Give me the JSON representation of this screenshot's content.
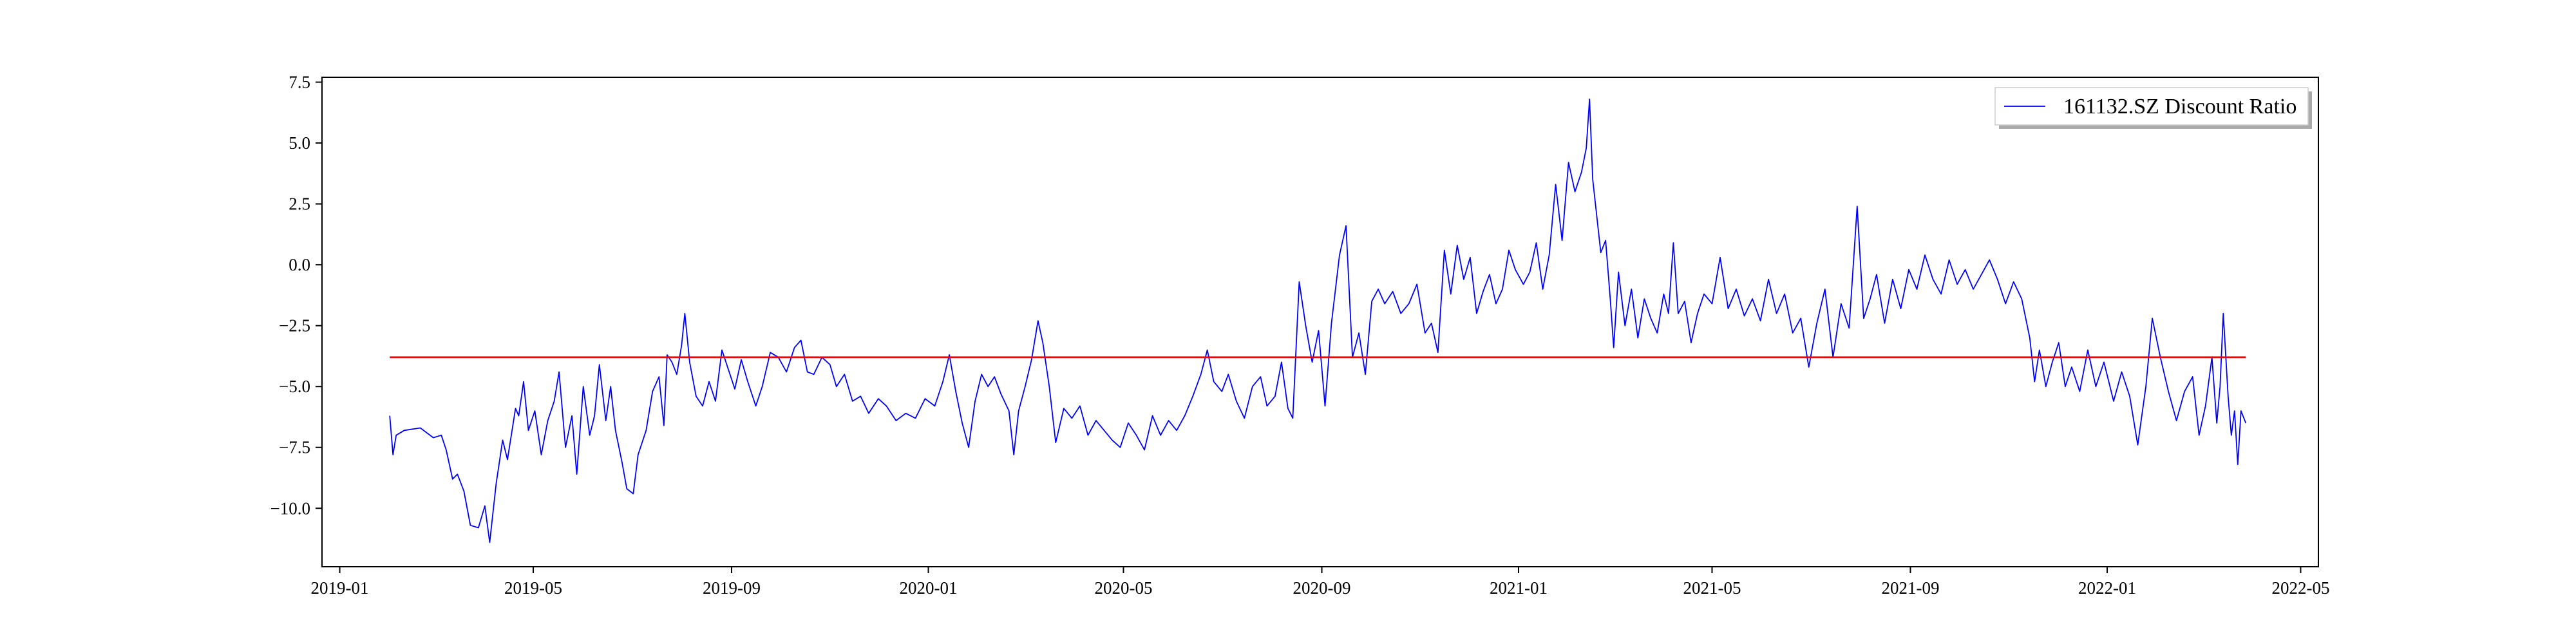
{
  "chart_data": {
    "type": "line",
    "title": "",
    "xlabel": "",
    "ylabel": "",
    "x_tick_labels": [
      "2019-01",
      "2019-05",
      "2019-09",
      "2020-01",
      "2020-05",
      "2020-09",
      "2021-01",
      "2021-05",
      "2021-09",
      "2022-01",
      "2022-05"
    ],
    "y_tick_labels": [
      "7.5",
      "5.0",
      "2.5",
      "0.0",
      "−2.5",
      "−5.0",
      "−7.5",
      "−10.0"
    ],
    "y_ticks": [
      7.5,
      5.0,
      2.5,
      0.0,
      -2.5,
      -5.0,
      -7.5,
      -10.0
    ],
    "xlim": [
      "2018-12-21",
      "2022-05-12"
    ],
    "ylim": [
      -12.4,
      7.7
    ],
    "grid": false,
    "legend_position": "top-right",
    "series": [
      {
        "name": "161132.SZ Discount Ratio",
        "color": "#0000ff",
        "points": [
          [
            "2019-02-01",
            -6.2
          ],
          [
            "2019-02-03",
            -7.8
          ],
          [
            "2019-02-05",
            -7.0
          ],
          [
            "2019-02-10",
            -6.8
          ],
          [
            "2019-02-20",
            -6.7
          ],
          [
            "2019-02-28",
            -7.1
          ],
          [
            "2019-03-05",
            -7.0
          ],
          [
            "2019-03-08",
            -7.6
          ],
          [
            "2019-03-12",
            -8.8
          ],
          [
            "2019-03-15",
            -8.6
          ],
          [
            "2019-03-19",
            -9.3
          ],
          [
            "2019-03-23",
            -10.7
          ],
          [
            "2019-03-28",
            -10.8
          ],
          [
            "2019-04-01",
            -9.9
          ],
          [
            "2019-04-04",
            -11.4
          ],
          [
            "2019-04-08",
            -9.0
          ],
          [
            "2019-04-12",
            -7.2
          ],
          [
            "2019-04-15",
            -8.0
          ],
          [
            "2019-04-20",
            -5.9
          ],
          [
            "2019-04-22",
            -6.2
          ],
          [
            "2019-04-25",
            -4.8
          ],
          [
            "2019-04-28",
            -6.8
          ],
          [
            "2019-05-02",
            -6.0
          ],
          [
            "2019-05-06",
            -7.8
          ],
          [
            "2019-05-10",
            -6.4
          ],
          [
            "2019-05-14",
            -5.6
          ],
          [
            "2019-05-17",
            -4.4
          ],
          [
            "2019-05-21",
            -7.5
          ],
          [
            "2019-05-25",
            -6.2
          ],
          [
            "2019-05-28",
            -8.6
          ],
          [
            "2019-06-01",
            -5.0
          ],
          [
            "2019-06-05",
            -7.0
          ],
          [
            "2019-06-08",
            -6.2
          ],
          [
            "2019-06-11",
            -4.1
          ],
          [
            "2019-06-15",
            -6.4
          ],
          [
            "2019-06-18",
            -5.0
          ],
          [
            "2019-06-21",
            -6.8
          ],
          [
            "2019-06-25",
            -8.1
          ],
          [
            "2019-06-28",
            -9.2
          ],
          [
            "2019-07-02",
            -9.4
          ],
          [
            "2019-07-05",
            -7.8
          ],
          [
            "2019-07-10",
            -6.8
          ],
          [
            "2019-07-14",
            -5.2
          ],
          [
            "2019-07-18",
            -4.6
          ],
          [
            "2019-07-21",
            -6.6
          ],
          [
            "2019-07-23",
            -3.7
          ],
          [
            "2019-07-26",
            -4.0
          ],
          [
            "2019-07-29",
            -4.5
          ],
          [
            "2019-08-01",
            -3.3
          ],
          [
            "2019-08-03",
            -2.0
          ],
          [
            "2019-08-06",
            -4.0
          ],
          [
            "2019-08-10",
            -5.4
          ],
          [
            "2019-08-14",
            -5.8
          ],
          [
            "2019-08-18",
            -4.8
          ],
          [
            "2019-08-22",
            -5.6
          ],
          [
            "2019-08-26",
            -3.5
          ],
          [
            "2019-08-30",
            -4.3
          ],
          [
            "2019-09-03",
            -5.1
          ],
          [
            "2019-09-07",
            -3.9
          ],
          [
            "2019-09-11",
            -4.8
          ],
          [
            "2019-09-16",
            -5.8
          ],
          [
            "2019-09-20",
            -5.0
          ],
          [
            "2019-09-25",
            -3.6
          ],
          [
            "2019-09-30",
            -3.8
          ],
          [
            "2019-10-05",
            -4.4
          ],
          [
            "2019-10-10",
            -3.4
          ],
          [
            "2019-10-14",
            -3.1
          ],
          [
            "2019-10-18",
            -4.4
          ],
          [
            "2019-10-22",
            -4.5
          ],
          [
            "2019-10-27",
            -3.8
          ],
          [
            "2019-11-01",
            -4.1
          ],
          [
            "2019-11-05",
            -5.0
          ],
          [
            "2019-11-10",
            -4.5
          ],
          [
            "2019-11-15",
            -5.6
          ],
          [
            "2019-11-20",
            -5.4
          ],
          [
            "2019-11-25",
            -6.1
          ],
          [
            "2019-12-01",
            -5.5
          ],
          [
            "2019-12-06",
            -5.8
          ],
          [
            "2019-12-12",
            -6.4
          ],
          [
            "2019-12-18",
            -6.1
          ],
          [
            "2019-12-24",
            -6.3
          ],
          [
            "2019-12-30",
            -5.5
          ],
          [
            "2020-01-05",
            -5.8
          ],
          [
            "2020-01-10",
            -4.8
          ],
          [
            "2020-01-14",
            -3.7
          ],
          [
            "2020-01-18",
            -5.2
          ],
          [
            "2020-01-22",
            -6.5
          ],
          [
            "2020-01-26",
            -7.5
          ],
          [
            "2020-01-30",
            -5.6
          ],
          [
            "2020-02-03",
            -4.5
          ],
          [
            "2020-02-07",
            -5.0
          ],
          [
            "2020-02-11",
            -4.6
          ],
          [
            "2020-02-15",
            -5.3
          ],
          [
            "2020-02-20",
            -6.0
          ],
          [
            "2020-02-23",
            -7.8
          ],
          [
            "2020-02-26",
            -6.0
          ],
          [
            "2020-03-01",
            -5.0
          ],
          [
            "2020-03-05",
            -3.9
          ],
          [
            "2020-03-09",
            -2.3
          ],
          [
            "2020-03-12",
            -3.2
          ],
          [
            "2020-03-16",
            -5.0
          ],
          [
            "2020-03-20",
            -7.3
          ],
          [
            "2020-03-25",
            -5.9
          ],
          [
            "2020-03-30",
            -6.3
          ],
          [
            "2020-04-04",
            -5.8
          ],
          [
            "2020-04-09",
            -7.0
          ],
          [
            "2020-04-14",
            -6.4
          ],
          [
            "2020-04-19",
            -6.8
          ],
          [
            "2020-04-24",
            -7.2
          ],
          [
            "2020-04-29",
            -7.5
          ],
          [
            "2020-05-04",
            -6.5
          ],
          [
            "2020-05-09",
            -7.0
          ],
          [
            "2020-05-14",
            -7.6
          ],
          [
            "2020-05-19",
            -6.2
          ],
          [
            "2020-05-24",
            -7.0
          ],
          [
            "2020-05-29",
            -6.4
          ],
          [
            "2020-06-03",
            -6.8
          ],
          [
            "2020-06-08",
            -6.2
          ],
          [
            "2020-06-13",
            -5.4
          ],
          [
            "2020-06-18",
            -4.5
          ],
          [
            "2020-06-22",
            -3.5
          ],
          [
            "2020-06-26",
            -4.8
          ],
          [
            "2020-07-01",
            -5.2
          ],
          [
            "2020-07-05",
            -4.5
          ],
          [
            "2020-07-10",
            -5.6
          ],
          [
            "2020-07-15",
            -6.3
          ],
          [
            "2020-07-20",
            -5.0
          ],
          [
            "2020-07-25",
            -4.6
          ],
          [
            "2020-07-29",
            -5.8
          ],
          [
            "2020-08-03",
            -5.4
          ],
          [
            "2020-08-07",
            -4.0
          ],
          [
            "2020-08-11",
            -5.9
          ],
          [
            "2020-08-14",
            -6.3
          ],
          [
            "2020-08-18",
            -0.7
          ],
          [
            "2020-08-22",
            -2.5
          ],
          [
            "2020-08-26",
            -4.0
          ],
          [
            "2020-08-30",
            -2.7
          ],
          [
            "2020-09-03",
            -5.8
          ],
          [
            "2020-09-07",
            -2.4
          ],
          [
            "2020-09-12",
            0.4
          ],
          [
            "2020-09-16",
            1.6
          ],
          [
            "2020-09-20",
            -3.8
          ],
          [
            "2020-09-24",
            -2.8
          ],
          [
            "2020-09-28",
            -4.5
          ],
          [
            "2020-10-02",
            -1.5
          ],
          [
            "2020-10-06",
            -1.0
          ],
          [
            "2020-10-10",
            -1.6
          ],
          [
            "2020-10-15",
            -1.1
          ],
          [
            "2020-10-20",
            -2.0
          ],
          [
            "2020-10-25",
            -1.6
          ],
          [
            "2020-10-30",
            -0.8
          ],
          [
            "2020-11-04",
            -2.8
          ],
          [
            "2020-11-08",
            -2.4
          ],
          [
            "2020-11-12",
            -3.6
          ],
          [
            "2020-11-16",
            0.6
          ],
          [
            "2020-11-20",
            -1.2
          ],
          [
            "2020-11-24",
            0.8
          ],
          [
            "2020-11-28",
            -0.6
          ],
          [
            "2020-12-02",
            0.3
          ],
          [
            "2020-12-06",
            -2.0
          ],
          [
            "2020-12-10",
            -1.1
          ],
          [
            "2020-12-14",
            -0.4
          ],
          [
            "2020-12-18",
            -1.6
          ],
          [
            "2020-12-22",
            -1.0
          ],
          [
            "2020-12-26",
            0.6
          ],
          [
            "2020-12-30",
            -0.2
          ],
          [
            "2021-01-04",
            -0.8
          ],
          [
            "2021-01-08",
            -0.3
          ],
          [
            "2021-01-12",
            0.9
          ],
          [
            "2021-01-16",
            -1.0
          ],
          [
            "2021-01-20",
            0.4
          ],
          [
            "2021-01-24",
            3.3
          ],
          [
            "2021-01-28",
            1.0
          ],
          [
            "2021-02-01",
            4.2
          ],
          [
            "2021-02-05",
            3.0
          ],
          [
            "2021-02-09",
            3.8
          ],
          [
            "2021-02-12",
            4.8
          ],
          [
            "2021-02-14",
            6.8
          ],
          [
            "2021-02-16",
            3.5
          ],
          [
            "2021-02-18",
            2.3
          ],
          [
            "2021-02-21",
            0.5
          ],
          [
            "2021-02-24",
            1.0
          ],
          [
            "2021-02-27",
            -1.5
          ],
          [
            "2021-03-01",
            -3.4
          ],
          [
            "2021-03-04",
            -0.3
          ],
          [
            "2021-03-08",
            -2.5
          ],
          [
            "2021-03-12",
            -1.0
          ],
          [
            "2021-03-16",
            -3.0
          ],
          [
            "2021-03-20",
            -1.4
          ],
          [
            "2021-03-24",
            -2.2
          ],
          [
            "2021-03-28",
            -2.8
          ],
          [
            "2021-04-01",
            -1.2
          ],
          [
            "2021-04-04",
            -2.0
          ],
          [
            "2021-04-07",
            0.9
          ],
          [
            "2021-04-10",
            -2.0
          ],
          [
            "2021-04-14",
            -1.5
          ],
          [
            "2021-04-18",
            -3.2
          ],
          [
            "2021-04-22",
            -2.0
          ],
          [
            "2021-04-26",
            -1.2
          ],
          [
            "2021-05-01",
            -1.6
          ],
          [
            "2021-05-06",
            0.3
          ],
          [
            "2021-05-11",
            -1.8
          ],
          [
            "2021-05-16",
            -1.0
          ],
          [
            "2021-05-21",
            -2.1
          ],
          [
            "2021-05-26",
            -1.4
          ],
          [
            "2021-05-31",
            -2.3
          ],
          [
            "2021-06-05",
            -0.6
          ],
          [
            "2021-06-10",
            -2.0
          ],
          [
            "2021-06-15",
            -1.2
          ],
          [
            "2021-06-20",
            -2.8
          ],
          [
            "2021-06-25",
            -2.2
          ],
          [
            "2021-06-30",
            -4.2
          ],
          [
            "2021-07-05",
            -2.4
          ],
          [
            "2021-07-10",
            -1.0
          ],
          [
            "2021-07-15",
            -3.8
          ],
          [
            "2021-07-20",
            -1.6
          ],
          [
            "2021-07-25",
            -2.6
          ],
          [
            "2021-07-30",
            2.4
          ],
          [
            "2021-08-03",
            -2.2
          ],
          [
            "2021-08-07",
            -1.4
          ],
          [
            "2021-08-11",
            -0.4
          ],
          [
            "2021-08-16",
            -2.4
          ],
          [
            "2021-08-21",
            -0.6
          ],
          [
            "2021-08-26",
            -1.8
          ],
          [
            "2021-08-31",
            -0.2
          ],
          [
            "2021-09-05",
            -1.0
          ],
          [
            "2021-09-10",
            0.4
          ],
          [
            "2021-09-15",
            -0.6
          ],
          [
            "2021-09-20",
            -1.2
          ],
          [
            "2021-09-25",
            0.2
          ],
          [
            "2021-09-30",
            -0.8
          ],
          [
            "2021-10-05",
            -0.2
          ],
          [
            "2021-10-10",
            -1.0
          ],
          [
            "2021-10-15",
            -0.4
          ],
          [
            "2021-10-20",
            0.2
          ],
          [
            "2021-10-25",
            -0.6
          ],
          [
            "2021-10-30",
            -1.6
          ],
          [
            "2021-11-04",
            -0.7
          ],
          [
            "2021-11-09",
            -1.4
          ],
          [
            "2021-11-14",
            -3.0
          ],
          [
            "2021-11-17",
            -4.8
          ],
          [
            "2021-11-20",
            -3.5
          ],
          [
            "2021-11-24",
            -5.0
          ],
          [
            "2021-11-28",
            -4.0
          ],
          [
            "2021-12-02",
            -3.2
          ],
          [
            "2021-12-06",
            -5.0
          ],
          [
            "2021-12-10",
            -4.2
          ],
          [
            "2021-12-15",
            -5.2
          ],
          [
            "2021-12-20",
            -3.5
          ],
          [
            "2021-12-25",
            -5.0
          ],
          [
            "2021-12-30",
            -4.0
          ],
          [
            "2022-01-05",
            -5.6
          ],
          [
            "2022-01-10",
            -4.4
          ],
          [
            "2022-01-15",
            -5.4
          ],
          [
            "2022-01-20",
            -7.4
          ],
          [
            "2022-01-25",
            -5.0
          ],
          [
            "2022-01-29",
            -2.2
          ],
          [
            "2022-02-03",
            -3.8
          ],
          [
            "2022-02-08",
            -5.2
          ],
          [
            "2022-02-13",
            -6.4
          ],
          [
            "2022-02-18",
            -5.2
          ],
          [
            "2022-02-23",
            -4.6
          ],
          [
            "2022-02-27",
            -7.0
          ],
          [
            "2022-03-03",
            -5.8
          ],
          [
            "2022-03-07",
            -3.8
          ],
          [
            "2022-03-10",
            -6.5
          ],
          [
            "2022-03-12",
            -5.0
          ],
          [
            "2022-03-14",
            -2.0
          ],
          [
            "2022-03-17",
            -5.4
          ],
          [
            "2022-03-19",
            -7.0
          ],
          [
            "2022-03-21",
            -6.0
          ],
          [
            "2022-03-23",
            -8.2
          ],
          [
            "2022-03-25",
            -6.0
          ],
          [
            "2022-03-28",
            -6.5
          ]
        ]
      },
      {
        "name": "",
        "color": "#ff0000",
        "points": [
          [
            "2019-02-01",
            -3.8
          ],
          [
            "2022-03-28",
            -3.8
          ]
        ]
      }
    ]
  },
  "legend": {
    "label": "161132.SZ Discount Ratio",
    "line_color": "#0000ff"
  }
}
